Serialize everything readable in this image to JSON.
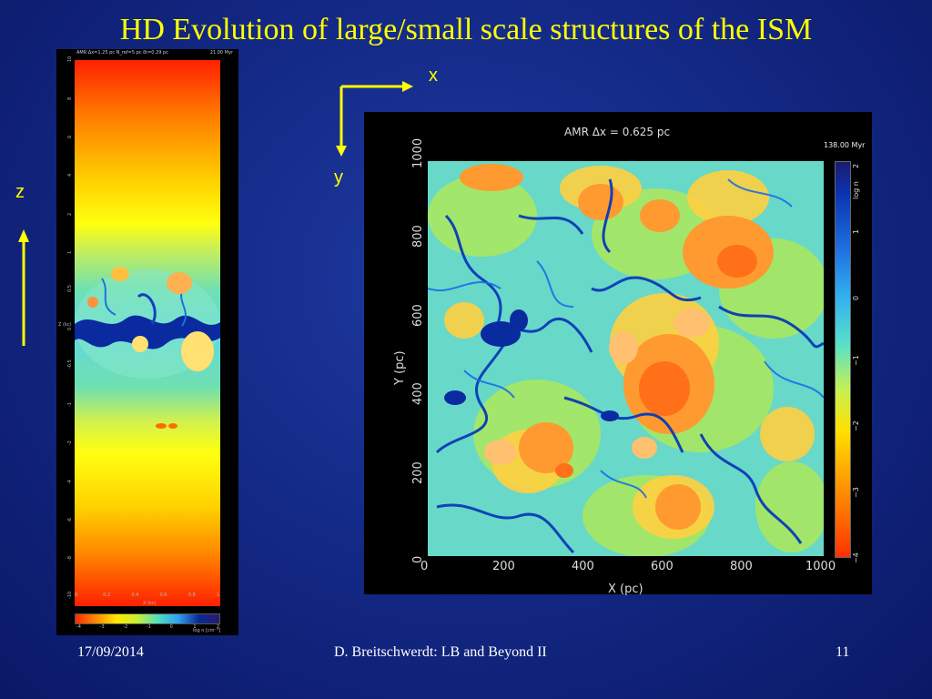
{
  "slide": {
    "title": "HD Evolution of large/small scale structures of the ISM",
    "footer_date": "17/09/2014",
    "footer_center": "D. Breitschwerdt: LB and Beyond II",
    "page_number": "11"
  },
  "axis_letters": {
    "x": "x",
    "y": "y",
    "z": "z"
  },
  "left_panel": {
    "header_info": "AMR Δx=1.25 pc  N_ref=5 pc  δt=0.29 pc",
    "time": "21.00 Myr",
    "z_ticks": [
      "10",
      "8",
      "6",
      "4",
      "2",
      "1",
      "0.5",
      "0",
      "-0.5",
      "-1",
      "-2",
      "-4",
      "-6",
      "-8",
      "-10"
    ],
    "x_ticks": [
      "0",
      "0.2",
      "0.4",
      "0.6",
      "0.8",
      "1"
    ],
    "x_axis_label": "X (kc)",
    "z_axis_label": "Z (kc)",
    "colorbar_ticks": [
      "-4",
      "-3",
      "-2",
      "-1",
      "0",
      "1",
      "2"
    ],
    "colorbar_label": "log n [cm⁻³]"
  },
  "right_panel": {
    "amr_label": "AMR Δx = 0.625 pc",
    "time": "138.00 Myr",
    "y_axis_label": "Y (pc)",
    "x_axis_label": "X (pc)",
    "y_ticks": [
      "0",
      "200",
      "400",
      "600",
      "800",
      "1000"
    ],
    "x_ticks": [
      "0",
      "200",
      "400",
      "600",
      "800",
      "1000"
    ],
    "colorbar_label": "log n",
    "colorbar_ticks": [
      "2",
      "1",
      "0",
      "−1",
      "−2",
      "−3",
      "−4"
    ]
  },
  "colors": {
    "background": "#142a88",
    "title": "#ffff00",
    "arrows": "#ffff00",
    "footer": "#ffffff"
  }
}
